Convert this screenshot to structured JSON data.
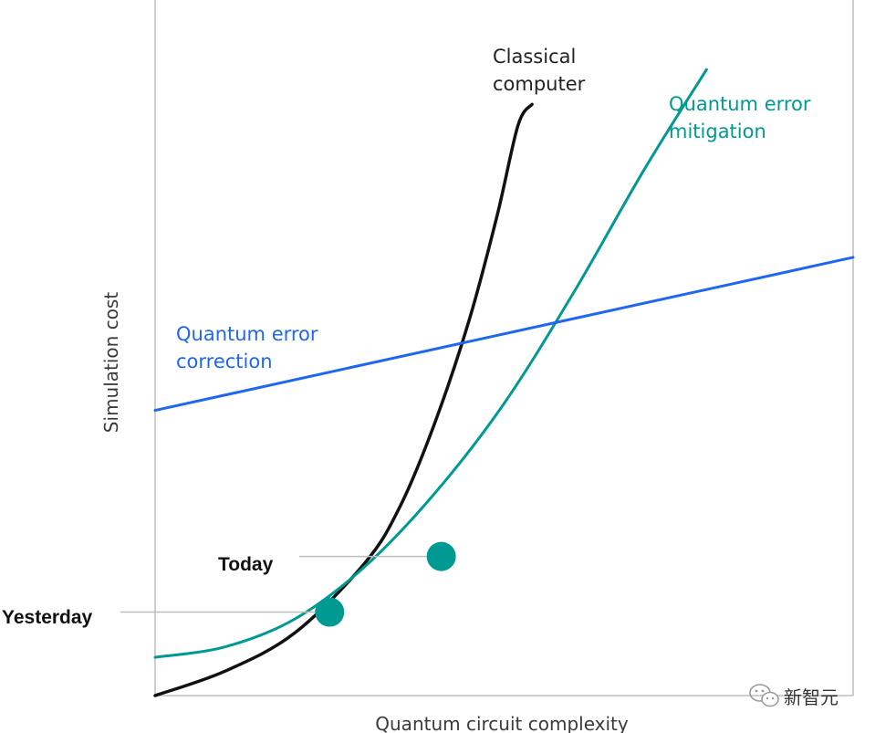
{
  "chart_data": {
    "type": "line",
    "title": "",
    "xlabel": "Quantum circuit complexity",
    "ylabel": "Simulation cost",
    "xlim": [
      0,
      10
    ],
    "ylim": [
      0,
      10
    ],
    "ticks_shown": false,
    "grid": false,
    "series": [
      {
        "name": "Classical computer",
        "label_lines": [
          "Classical",
          "computer"
        ],
        "color": "#111111",
        "x": [
          0.0,
          1.0,
          2.0,
          3.0,
          3.5,
          4.0,
          4.5,
          4.9,
          5.2,
          5.4
        ],
        "y": [
          0.0,
          0.35,
          0.9,
          1.9,
          2.7,
          3.9,
          5.4,
          6.9,
          8.2,
          8.5
        ]
      },
      {
        "name": "Quantum error mitigation",
        "label_lines": [
          "Quantum error",
          "mitigation"
        ],
        "color": "#009a93",
        "x": [
          0.0,
          1.0,
          2.0,
          3.0,
          4.0,
          5.0,
          6.0,
          7.0,
          7.9
        ],
        "y": [
          0.55,
          0.7,
          1.1,
          1.85,
          2.9,
          4.2,
          5.8,
          7.55,
          9.0
        ]
      },
      {
        "name": "Quantum error correction",
        "label_lines": [
          "Quantum error",
          "correction"
        ],
        "color": "#1f66f0",
        "x": [
          0,
          10
        ],
        "y": [
          4.1,
          6.3
        ]
      }
    ],
    "annotations": [
      {
        "label": "Yesterday",
        "x": 2.5,
        "y": 1.2
      },
      {
        "label": "Today",
        "x": 4.1,
        "y": 2.0
      }
    ]
  },
  "watermark": {
    "text": "新智元",
    "icon": "wechat-icon"
  }
}
